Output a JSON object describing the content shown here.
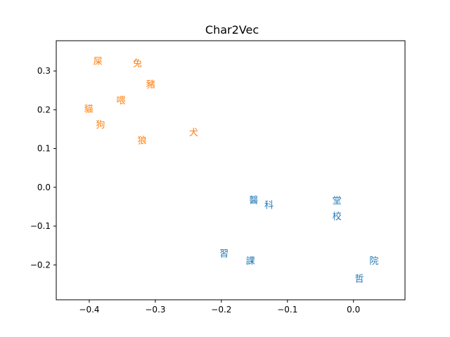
{
  "chart_data": {
    "type": "scatter",
    "title": "Char2Vec",
    "xlabel": "",
    "ylabel": "",
    "xlim": [
      -0.45,
      0.078
    ],
    "ylim": [
      -0.29,
      0.378
    ],
    "xticks": [
      -0.4,
      -0.3,
      -0.2,
      -0.1,
      0.0
    ],
    "xtick_labels": [
      "−0.4",
      "−0.3",
      "−0.2",
      "−0.1",
      "0.0"
    ],
    "yticks": [
      -0.2,
      -0.1,
      0.0,
      0.1,
      0.2,
      0.3
    ],
    "ytick_labels": [
      "−0.2",
      "−0.1",
      "0.0",
      "0.1",
      "0.2",
      "0.3"
    ],
    "grid": false,
    "series": [
      {
        "color": "#ff7f0e",
        "points": [
          {
            "label": "屎",
            "x": -0.387,
            "y": 0.326
          },
          {
            "label": "兔",
            "x": -0.327,
            "y": 0.321
          },
          {
            "label": "豬",
            "x": -0.307,
            "y": 0.267
          },
          {
            "label": "喂",
            "x": -0.352,
            "y": 0.225
          },
          {
            "label": "貓",
            "x": -0.401,
            "y": 0.203
          },
          {
            "label": "狗",
            "x": -0.383,
            "y": 0.163
          },
          {
            "label": "犬",
            "x": -0.242,
            "y": 0.143
          },
          {
            "label": "狼",
            "x": -0.32,
            "y": 0.122
          }
        ]
      },
      {
        "color": "#1f77b4",
        "points": [
          {
            "label": "醫",
            "x": -0.151,
            "y": -0.032
          },
          {
            "label": "科",
            "x": -0.128,
            "y": -0.045
          },
          {
            "label": "堂",
            "x": -0.025,
            "y": -0.033
          },
          {
            "label": "校",
            "x": -0.025,
            "y": -0.074
          },
          {
            "label": "習",
            "x": -0.196,
            "y": -0.17
          },
          {
            "label": "課",
            "x": -0.156,
            "y": -0.189
          },
          {
            "label": "院",
            "x": 0.031,
            "y": -0.189
          },
          {
            "label": "哲",
            "x": 0.009,
            "y": -0.235
          }
        ]
      }
    ]
  }
}
